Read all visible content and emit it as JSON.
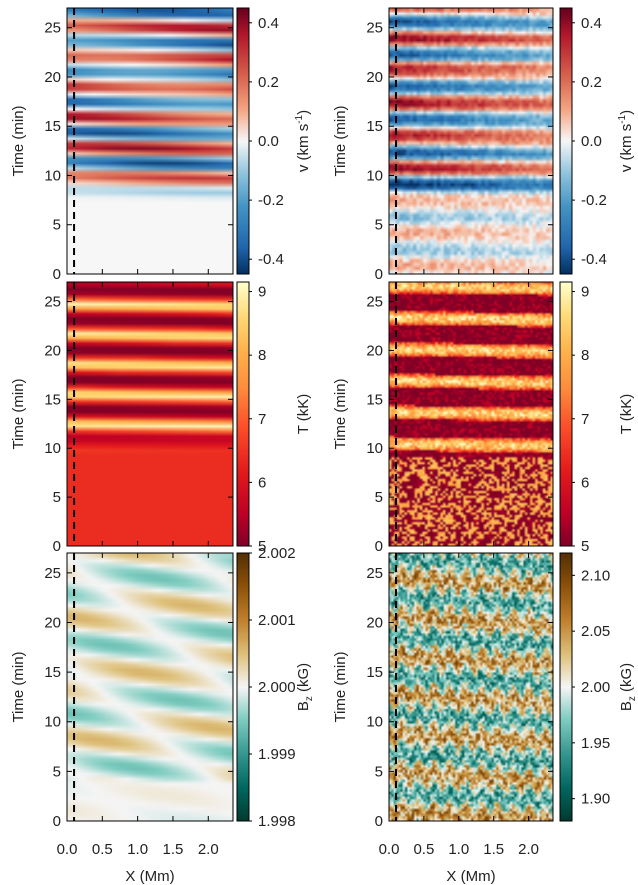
{
  "chart_data": [
    {
      "type": "heatmap",
      "panel": "simulation-velocity",
      "ylabel": "Time (min)",
      "ylim": [
        0,
        27
      ],
      "yticks": [
        0,
        5,
        10,
        15,
        20,
        25
      ],
      "xlim": [
        0,
        2.35
      ],
      "xticks": [
        0.0,
        0.5,
        1.0,
        1.5,
        2.0
      ],
      "show_xticklabels": false,
      "colorbar": {
        "label": "v (km s",
        "label_sup": "-1",
        "label_end": ")",
        "range": [
          -0.45,
          0.45
        ],
        "ticks": [
          0.4,
          0.2,
          0.0,
          -0.2,
          -0.4
        ],
        "tick_labels": [
          "0.4",
          "0.2",
          "0.0",
          "-0.2",
          "-0.4"
        ],
        "colormap": "RdBu_r"
      },
      "marker_x": 0.1
    },
    {
      "type": "heatmap",
      "panel": "observation-velocity",
      "ylabel": "Time (min)",
      "ylim": [
        0,
        27
      ],
      "yticks": [
        0,
        5,
        10,
        15,
        20,
        25
      ],
      "xlim": [
        0,
        2.35
      ],
      "xticks": [
        0.0,
        0.5,
        1.0,
        1.5,
        2.0
      ],
      "show_xticklabels": false,
      "colorbar": {
        "label": "v (km s",
        "label_sup": "-1",
        "label_end": ")",
        "range": [
          -0.45,
          0.45
        ],
        "ticks": [
          0.4,
          0.2,
          0.0,
          -0.2,
          -0.4
        ],
        "tick_labels": [
          "0.4",
          "0.2",
          "0.0",
          "-0.2",
          "-0.4"
        ],
        "colormap": "RdBu_r"
      },
      "marker_x": 0.1
    },
    {
      "type": "heatmap",
      "panel": "simulation-temperature",
      "ylabel": "Time (min)",
      "ylim": [
        0,
        27
      ],
      "yticks": [
        0,
        5,
        10,
        15,
        20,
        25
      ],
      "xlim": [
        0,
        2.35
      ],
      "xticks": [
        0.0,
        0.5,
        1.0,
        1.5,
        2.0
      ],
      "show_xticklabels": false,
      "colorbar": {
        "label": "T (kK)",
        "range": [
          5,
          9.15
        ],
        "ticks": [
          9,
          8,
          7,
          6,
          5
        ],
        "tick_labels": [
          "9",
          "8",
          "7",
          "6",
          "5"
        ],
        "colormap": "YlOrRd_r"
      },
      "marker_x": 0.1
    },
    {
      "type": "heatmap",
      "panel": "observation-temperature",
      "ylabel": "Time (min)",
      "ylim": [
        0,
        27
      ],
      "yticks": [
        0,
        5,
        10,
        15,
        20,
        25
      ],
      "xlim": [
        0,
        2.35
      ],
      "xticks": [
        0.0,
        0.5,
        1.0,
        1.5,
        2.0
      ],
      "show_xticklabels": false,
      "colorbar": {
        "label": "T (kK)",
        "range": [
          5,
          9.15
        ],
        "ticks": [
          9,
          8,
          7,
          6,
          5
        ],
        "tick_labels": [
          "9",
          "8",
          "7",
          "6",
          "5"
        ],
        "colormap": "YlOrRd_r"
      },
      "marker_x": 0.1
    },
    {
      "type": "heatmap",
      "panel": "simulation-magnetic-field",
      "ylabel": "Time (min)",
      "ylim": [
        0,
        27
      ],
      "yticks": [
        0,
        5,
        10,
        15,
        20,
        25
      ],
      "xlabel": "X (Mm)",
      "xlim": [
        0,
        2.35
      ],
      "xticks": [
        0.0,
        0.5,
        1.0,
        1.5,
        2.0
      ],
      "xtick_labels": [
        "0.0",
        "0.5",
        "1.0",
        "1.5",
        "2.0"
      ],
      "show_xticklabels": true,
      "colorbar": {
        "label": "B",
        "label_sub": "z",
        "label_end": " (kG)",
        "range": [
          1.998,
          2.002
        ],
        "ticks": [
          2.002,
          2.001,
          2.0,
          1.999,
          1.998
        ],
        "tick_labels": [
          "2.002",
          "2.001",
          "2.000",
          "1.999",
          "1.998"
        ],
        "colormap": "BrBG_r"
      },
      "marker_x": 0.1
    },
    {
      "type": "heatmap",
      "panel": "observation-magnetic-field",
      "ylabel": "Time (min)",
      "ylim": [
        0,
        27
      ],
      "yticks": [
        0,
        5,
        10,
        15,
        20,
        25
      ],
      "xlabel": "X (Mm)",
      "xlim": [
        0,
        2.35
      ],
      "xticks": [
        0.0,
        0.5,
        1.0,
        1.5,
        2.0
      ],
      "xtick_labels": [
        "0.0",
        "0.5",
        "1.0",
        "1.5",
        "2.0"
      ],
      "show_xticklabels": true,
      "colorbar": {
        "label": "B",
        "label_sub": "z",
        "label_end": " (kG)",
        "range": [
          1.88,
          2.12
        ],
        "ticks": [
          2.1,
          2.05,
          2.0,
          1.95,
          1.9
        ],
        "tick_labels": [
          "2.10",
          "2.05",
          "2.00",
          "1.95",
          "1.90"
        ],
        "colormap": "BrBG_r"
      },
      "marker_x": 0.1
    }
  ]
}
